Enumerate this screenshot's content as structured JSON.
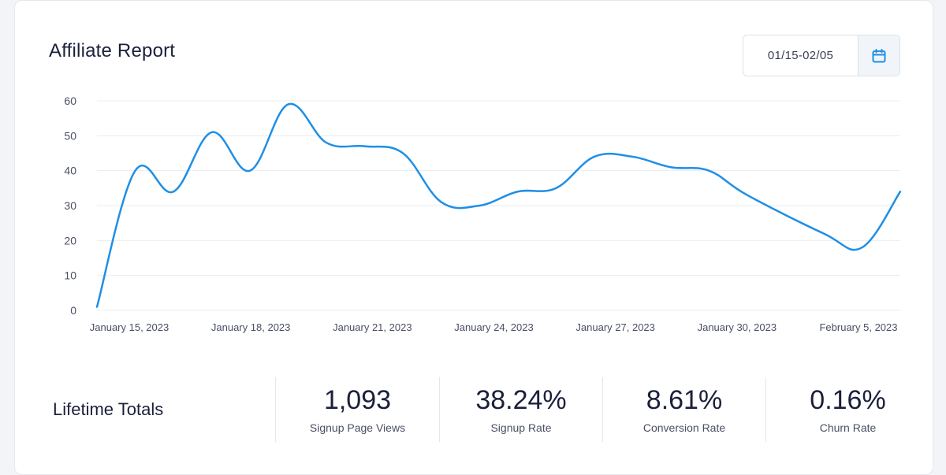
{
  "report": {
    "title": "Affiliate Report",
    "date_range": "01/15-02/05",
    "calendar_icon": "calendar-icon",
    "accent_color": "#1f8fe5"
  },
  "chart_data": {
    "type": "line",
    "title": "",
    "xlabel": "",
    "ylabel": "",
    "ylim": [
      0,
      60
    ],
    "yticks": [
      0,
      10,
      20,
      30,
      40,
      50,
      60
    ],
    "grid": true,
    "x_tick_labels": [
      "January 15, 2023",
      "January 18, 2023",
      "January 21, 2023",
      "January 24, 2023",
      "January 27, 2023",
      "January 30, 2023",
      "February 5, 2023"
    ],
    "x": [
      "2023-01-15",
      "2023-01-16",
      "2023-01-17",
      "2023-01-18",
      "2023-01-19",
      "2023-01-20",
      "2023-01-21",
      "2023-01-22",
      "2023-01-23",
      "2023-01-24",
      "2023-01-25",
      "2023-01-26",
      "2023-01-27",
      "2023-01-28",
      "2023-01-29",
      "2023-01-30",
      "2023-01-31",
      "2023-02-01",
      "2023-02-03",
      "2023-02-04",
      "2023-02-05"
    ],
    "series": [
      {
        "values": [
          1,
          40,
          34,
          51,
          40,
          59,
          48,
          47,
          45,
          31,
          30,
          34,
          35,
          44,
          44,
          41,
          40,
          33,
          22,
          18,
          34
        ]
      }
    ]
  },
  "totals": {
    "label": "Lifetime Totals",
    "stats": [
      {
        "value": "1,093",
        "label": "Signup Page Views"
      },
      {
        "value": "38.24%",
        "label": "Signup Rate"
      },
      {
        "value": "8.61%",
        "label": "Conversion Rate"
      },
      {
        "value": "0.16%",
        "label": "Churn Rate"
      }
    ]
  }
}
